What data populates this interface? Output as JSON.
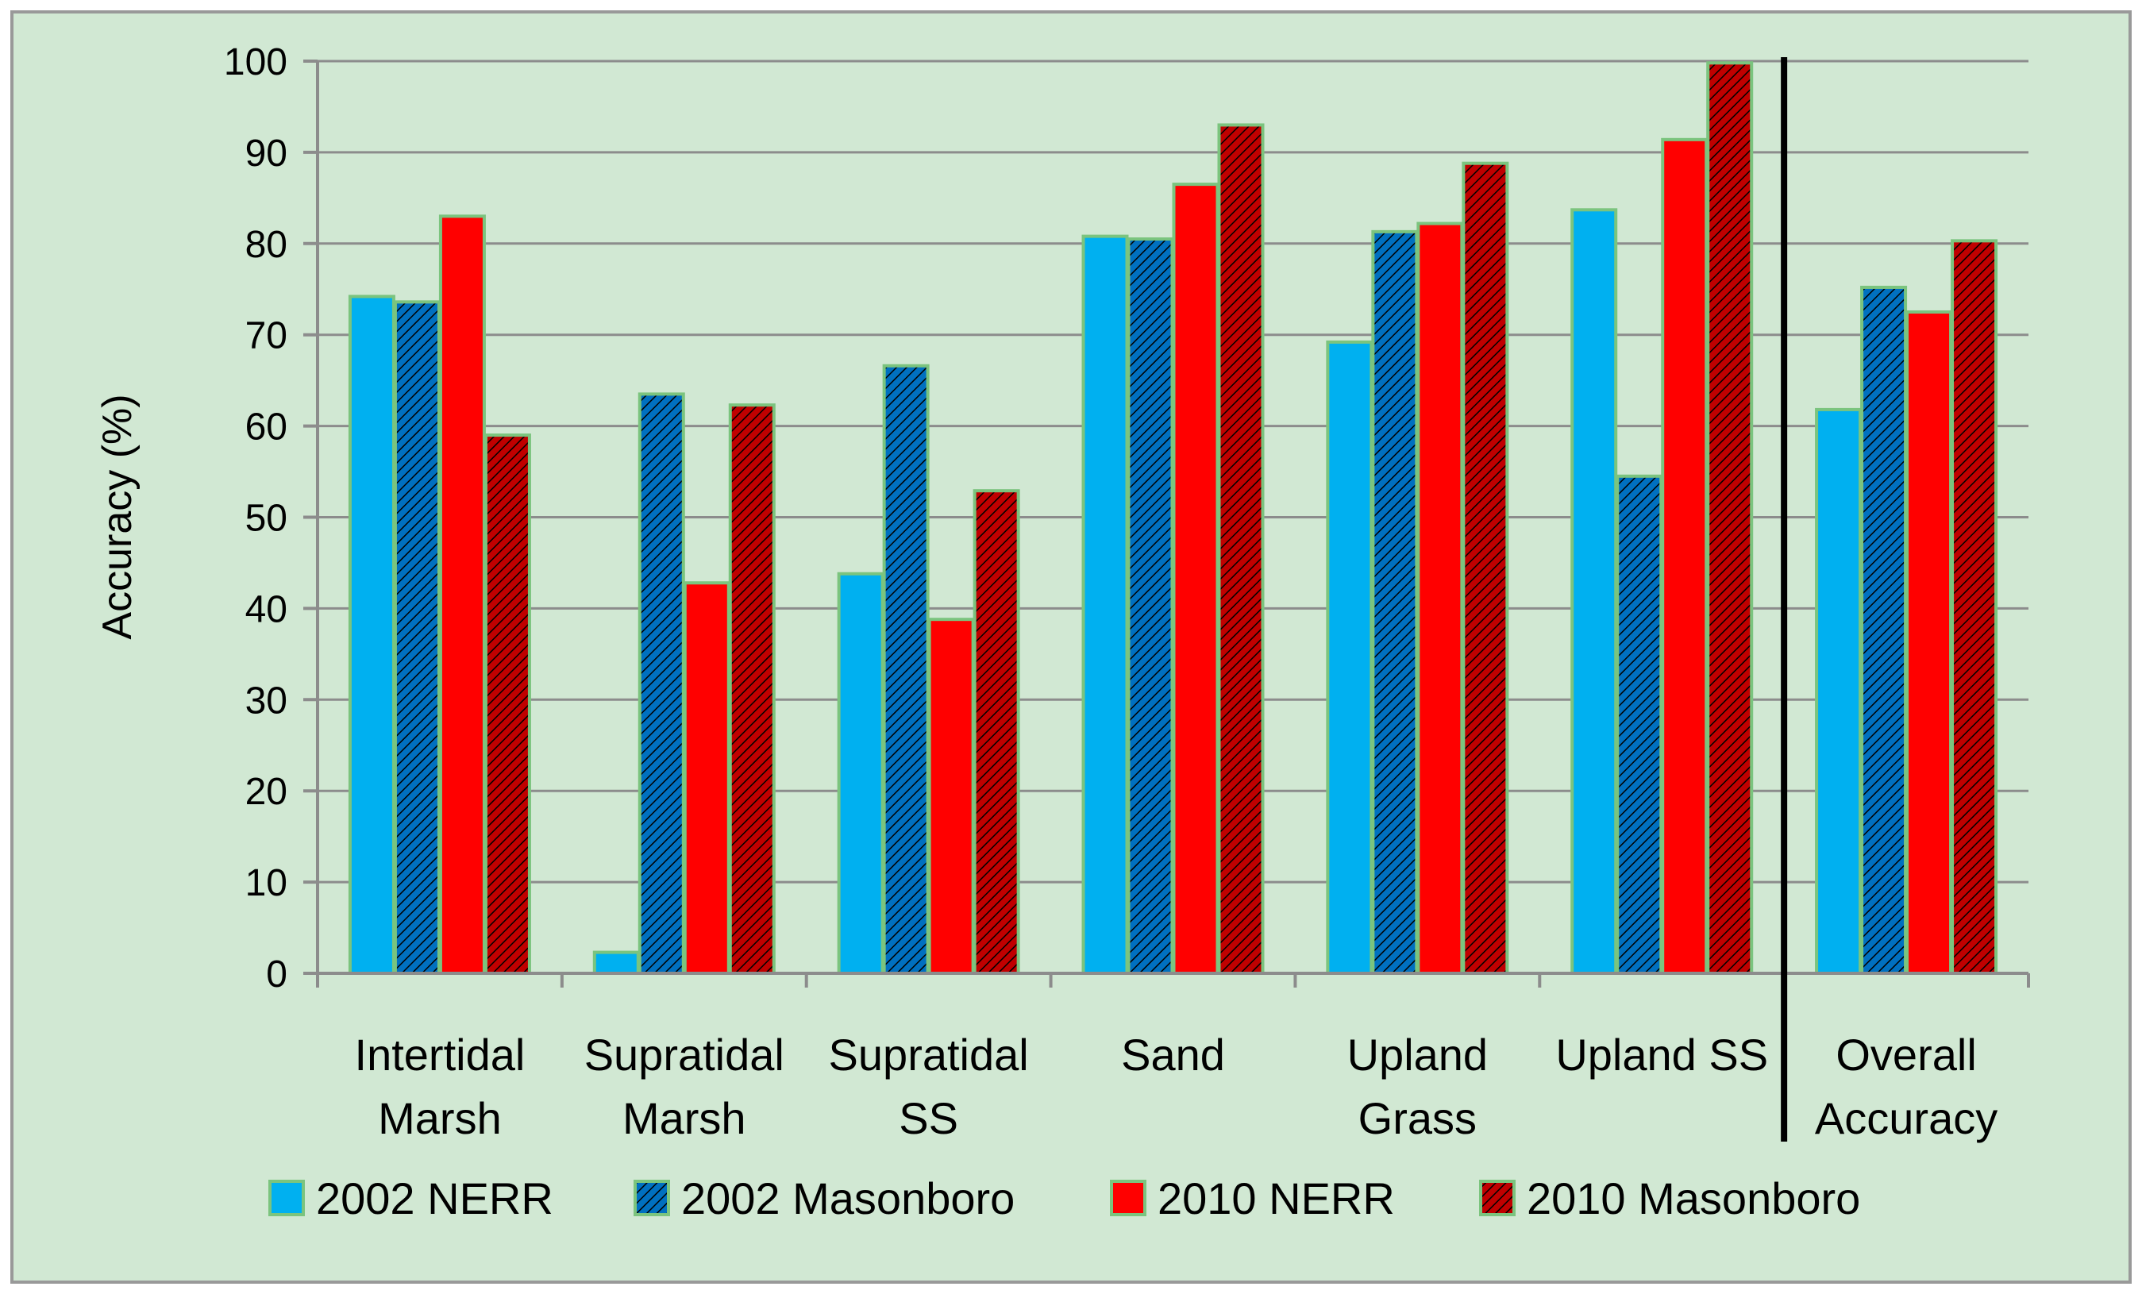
{
  "chart_data": {
    "type": "bar",
    "title": "",
    "xlabel": "",
    "ylabel": "Accuracy (%)",
    "ylim": [
      0,
      100
    ],
    "yticks": [
      0,
      10,
      20,
      30,
      40,
      50,
      60,
      70,
      80,
      90,
      100
    ],
    "grid": true,
    "legend_position": "bottom",
    "categories": [
      [
        "Intertidal",
        "Marsh"
      ],
      [
        "Supratidal",
        "Marsh"
      ],
      [
        "Supratidal",
        "SS"
      ],
      [
        "Sand"
      ],
      [
        "Upland",
        "Grass"
      ],
      [
        "Upland SS"
      ],
      [
        "Overall",
        "Accuracy"
      ]
    ],
    "separator_before_category": 6,
    "series": [
      {
        "name": "2002 NERR",
        "color": "#00B0F0",
        "pattern": "solid",
        "values": [
          74.2,
          2.3,
          43.8,
          80.8,
          69.2,
          83.7,
          61.8
        ]
      },
      {
        "name": "2002 Masonboro",
        "color": "#0070C0",
        "pattern": "hatched",
        "values": [
          73.6,
          63.5,
          66.6,
          80.5,
          81.3,
          54.5,
          75.2
        ]
      },
      {
        "name": "2010 NERR",
        "color": "#FF0000",
        "pattern": "solid",
        "values": [
          83.0,
          42.8,
          38.8,
          86.5,
          82.2,
          91.4,
          72.5
        ]
      },
      {
        "name": "2010 Masonboro",
        "color": "#C00000",
        "pattern": "hatched",
        "values": [
          59.0,
          62.3,
          52.9,
          93.0,
          88.8,
          99.8,
          80.3
        ]
      }
    ],
    "colors": {
      "background": "#D1E8D3",
      "bar_outline": "#7BC47E",
      "grid": "#8C8C8C",
      "axis": "#8C8C8C",
      "frame": "#999999",
      "separator": "#000000"
    }
  }
}
